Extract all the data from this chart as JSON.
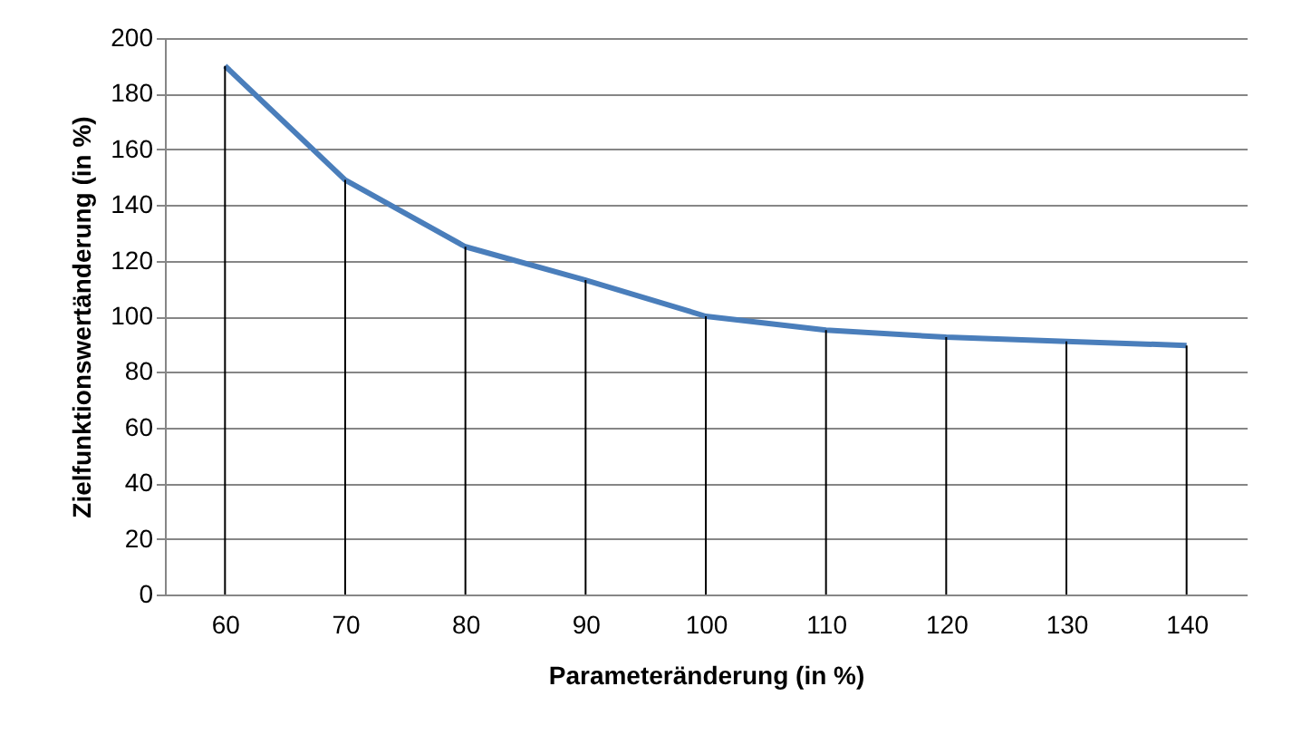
{
  "chart_data": {
    "type": "line",
    "xlabel": "Parameteränderung (in %)",
    "ylabel": "Zielfunktionswertänderung (in %)",
    "categories": [
      "60",
      "70",
      "80",
      "90",
      "100",
      "110",
      "120",
      "130",
      "140"
    ],
    "series": [
      {
        "color": "#4a7ebb",
        "values": [
          190,
          149,
          125,
          113,
          100,
          95,
          92.5,
          91,
          89.5
        ]
      },
      {
        "type": "bar",
        "color": "#000000",
        "values": [
          190,
          149,
          125,
          113,
          100,
          95,
          92.5,
          91,
          89.5
        ]
      }
    ],
    "ylim": [
      0,
      200
    ],
    "yticks": [
      0,
      20,
      40,
      60,
      80,
      100,
      120,
      140,
      160,
      180,
      200
    ],
    "grid": "y",
    "marker": "none",
    "line_style": "solid"
  }
}
